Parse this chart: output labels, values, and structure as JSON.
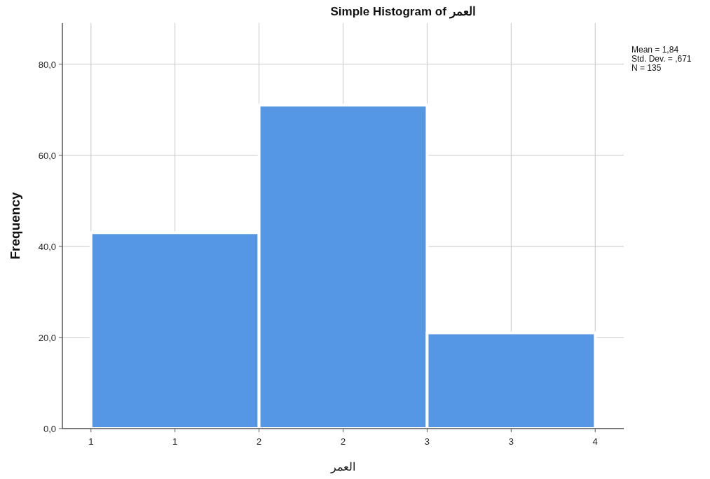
{
  "chart_data": {
    "type": "histogram",
    "title": "Simple Histogram of العمر",
    "xlabel": "العمر",
    "ylabel": "Frequency",
    "bins": [
      0.5,
      1.5,
      2.5,
      3.5
    ],
    "values": [
      43,
      71,
      21
    ],
    "color": "#5597e3",
    "xlim": [
      0.33,
      3.67
    ],
    "ylim": [
      0,
      89
    ],
    "xticks": [
      {
        "value": 0.5,
        "label": "1"
      },
      {
        "value": 1,
        "label": "1"
      },
      {
        "value": 1.5,
        "label": "2"
      },
      {
        "value": 2,
        "label": "2"
      },
      {
        "value": 2.5,
        "label": "3"
      },
      {
        "value": 3,
        "label": "3"
      },
      {
        "value": 3.5,
        "label": "4"
      }
    ],
    "yticks": [
      {
        "value": 0,
        "label": "0,0"
      },
      {
        "value": 20,
        "label": "20,0"
      },
      {
        "value": 40,
        "label": "40,0"
      },
      {
        "value": 60,
        "label": "60,0"
      },
      {
        "value": 80,
        "label": "80,0"
      }
    ],
    "grid": true,
    "annotations": [
      "Mean = 1,84",
      "Std. Dev. = ,671",
      "N = 135"
    ]
  }
}
